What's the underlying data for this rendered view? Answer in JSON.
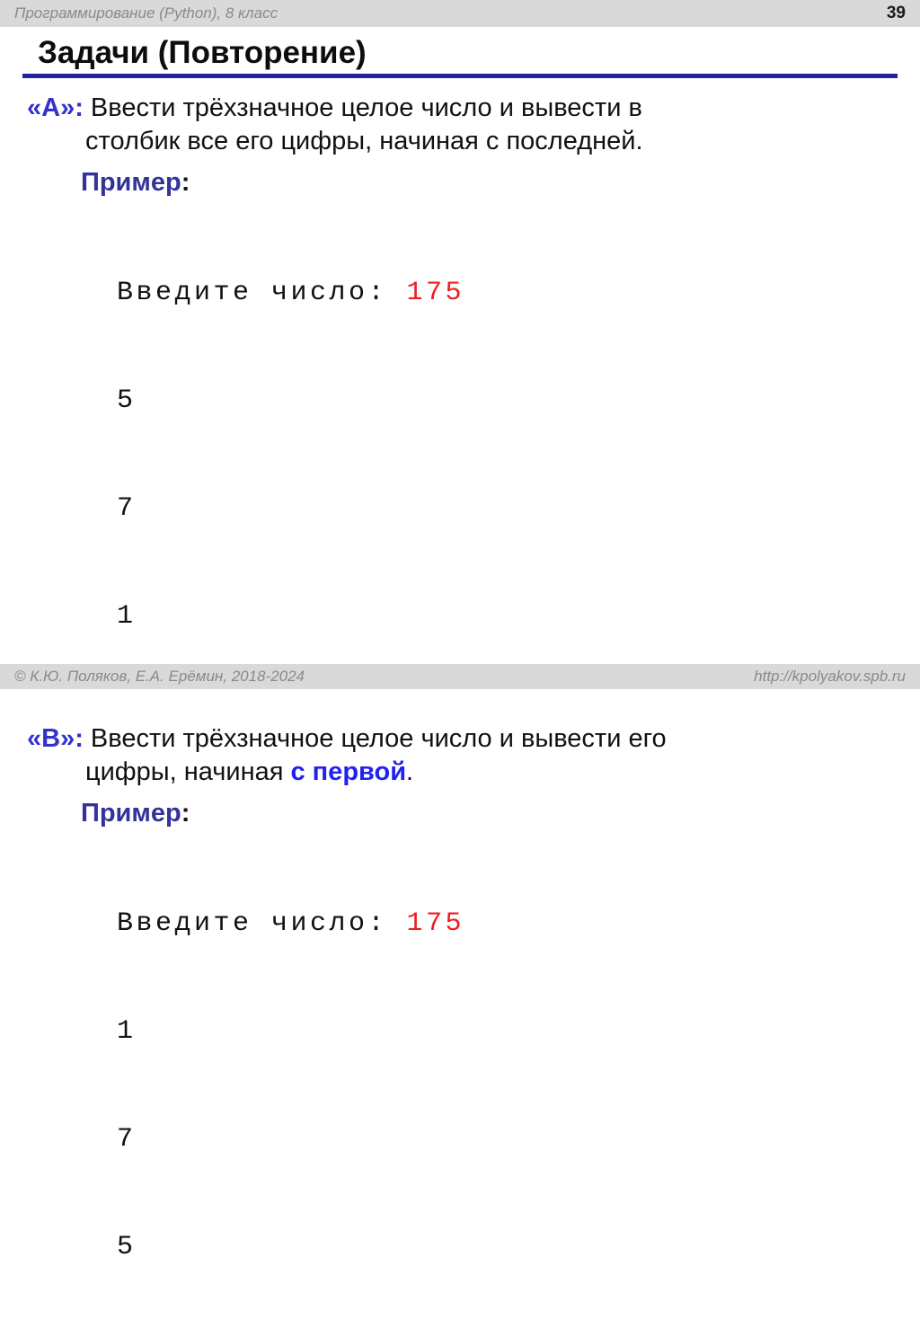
{
  "header": {
    "course": "Программирование (Python), 8 класс",
    "page_number": "39"
  },
  "title": "Задачи (Повторение)",
  "tasks": [
    {
      "label": "«A»:",
      "line1": "Ввести трёхзначное целое число и вывести в",
      "line2_pre": "столбик все его цифры, начиная с последней.",
      "line2_highlight": "",
      "line2_post": "",
      "example": {
        "label": "Пример",
        "colon": ":",
        "prompt": "Введите число: ",
        "value": "175",
        "outputs": [
          "5",
          "7",
          "1"
        ]
      }
    },
    {
      "label": "«B»:",
      "line1": "Ввести трёхзначное целое число и вывести его",
      "line2_pre": "цифры, начиная ",
      "line2_highlight": "с первой",
      "line2_post": ".",
      "example": {
        "label": "Пример",
        "colon": ":",
        "prompt": "Введите число: ",
        "value": "175",
        "outputs": [
          "1",
          "7",
          "5"
        ]
      }
    }
  ],
  "footer": {
    "copyright": "© К.Ю. Поляков, Е.А. Ерёмин, 2018-2024",
    "url": "http://kpolyakov.spb.ru"
  },
  "colors": {
    "bar_gray": "#d9d9d9",
    "bar_text_gray": "#8a8a8a",
    "accent_blue_label": "#3333cc",
    "example_navy": "#333399",
    "highlight_blue": "#2222ee",
    "underline_navy": "#23239e",
    "console_red": "#ee1d1d",
    "body_text": "#111111"
  }
}
